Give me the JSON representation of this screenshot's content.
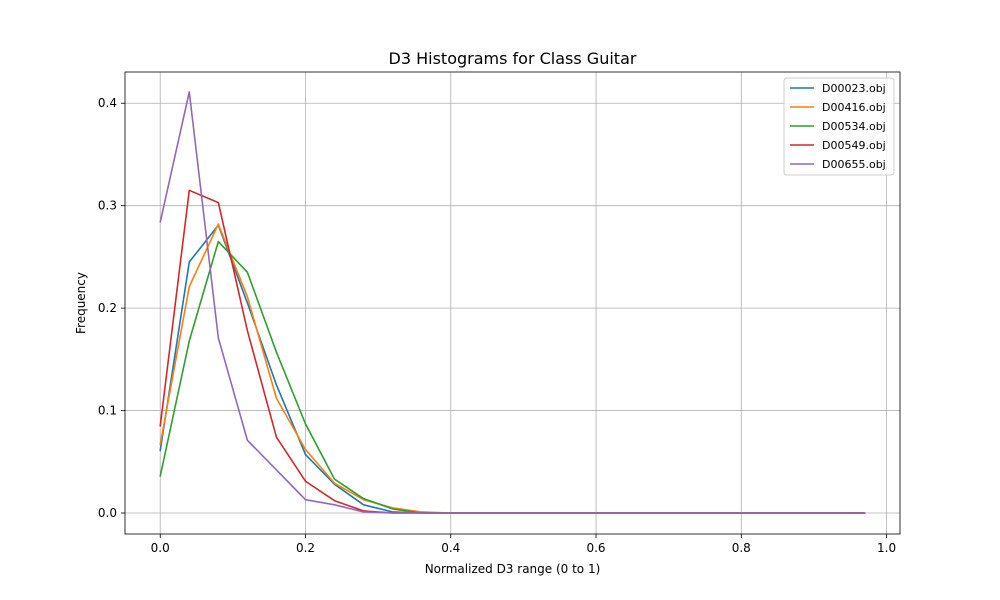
{
  "chart_data": {
    "type": "line",
    "title": "D3 Histograms for Class Guitar",
    "xlabel": "Normalized D3 range (0 to 1)",
    "ylabel": "Frequency",
    "xlim": [
      -0.0485,
      1.0185
    ],
    "ylim": [
      -0.0205,
      0.4305
    ],
    "xticks": [
      0.0,
      0.2,
      0.4,
      0.6,
      0.8,
      1.0
    ],
    "xtick_labels": [
      "0.0",
      "0.2",
      "0.4",
      "0.6",
      "0.8",
      "1.0"
    ],
    "yticks": [
      0.0,
      0.1,
      0.2,
      0.3,
      0.4
    ],
    "ytick_labels": [
      "0.0",
      "0.1",
      "0.2",
      "0.3",
      "0.4"
    ],
    "grid": true,
    "legend_position": "top-right",
    "x": [
      0.0,
      0.04,
      0.08,
      0.12,
      0.16,
      0.2,
      0.24,
      0.28,
      0.32,
      0.36,
      0.4,
      0.44,
      0.48,
      0.52,
      0.56,
      0.6,
      0.64,
      0.68,
      0.72,
      0.76,
      0.8,
      0.84,
      0.88,
      0.92,
      0.97
    ],
    "series": [
      {
        "name": "D00023.obj",
        "color": "#1f77b4",
        "values": [
          0.061,
          0.245,
          0.281,
          0.205,
          0.125,
          0.057,
          0.028,
          0.008,
          0.001,
          0.0,
          0.0,
          0.0,
          0.0,
          0.0,
          0.0,
          0.0,
          0.0,
          0.0,
          0.0,
          0.0,
          0.0,
          0.0,
          0.0,
          0.0,
          0.0
        ]
      },
      {
        "name": "D00416.obj",
        "color": "#ff7f0e",
        "values": [
          0.067,
          0.221,
          0.282,
          0.211,
          0.112,
          0.062,
          0.029,
          0.013,
          0.005,
          0.001,
          0.0,
          0.0,
          0.0,
          0.0,
          0.0,
          0.0,
          0.0,
          0.0,
          0.0,
          0.0,
          0.0,
          0.0,
          0.0,
          0.0,
          0.0
        ]
      },
      {
        "name": "D00534.obj",
        "color": "#2ca02c",
        "values": [
          0.036,
          0.168,
          0.265,
          0.235,
          0.157,
          0.087,
          0.033,
          0.014,
          0.004,
          0.0,
          0.0,
          0.0,
          0.0,
          0.0,
          0.0,
          0.0,
          0.0,
          0.0,
          0.0,
          0.0,
          0.0,
          0.0,
          0.0,
          0.0,
          0.0
        ]
      },
      {
        "name": "D00549.obj",
        "color": "#d62728",
        "values": [
          0.085,
          0.315,
          0.303,
          0.178,
          0.074,
          0.031,
          0.012,
          0.002,
          0.0,
          0.0,
          0.0,
          0.0,
          0.0,
          0.0,
          0.0,
          0.0,
          0.0,
          0.0,
          0.0,
          0.0,
          0.0,
          0.0,
          0.0,
          0.0,
          0.0
        ]
      },
      {
        "name": "D00655.obj",
        "color": "#9467bd",
        "values": [
          0.284,
          0.411,
          0.171,
          0.071,
          0.042,
          0.013,
          0.008,
          0.001,
          0.0,
          0.0,
          0.0,
          0.0,
          0.0,
          0.0,
          0.0,
          0.0,
          0.0,
          0.0,
          0.0,
          0.0,
          0.0,
          0.0,
          0.0,
          0.0,
          0.0
        ]
      }
    ]
  }
}
